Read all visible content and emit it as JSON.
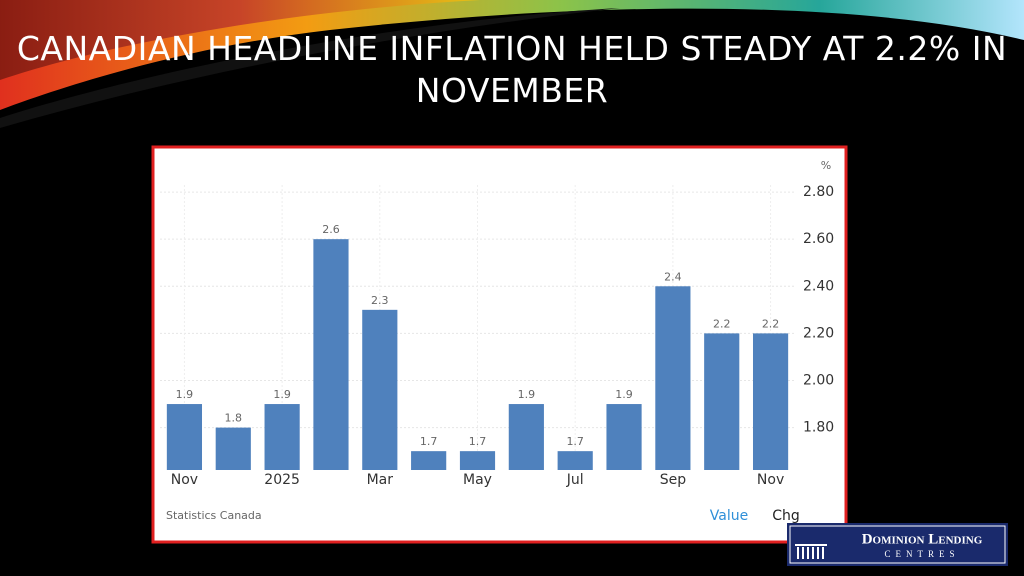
{
  "slide_title": "CANADIAN HEADLINE INFLATION HELD STEADY AT 2.2% IN NOVEMBER",
  "chart_data": {
    "type": "bar",
    "unit": "%",
    "categories": [
      "Nov",
      null,
      "2025",
      null,
      "Mar",
      null,
      "May",
      null,
      "Jul",
      null,
      "Sep",
      null,
      "Nov"
    ],
    "values": [
      1.9,
      1.8,
      1.9,
      2.6,
      2.3,
      1.7,
      1.7,
      1.9,
      1.7,
      1.9,
      2.4,
      2.2,
      2.2
    ],
    "color": "#4f81bd",
    "ylim": [
      1.62,
      2.83
    ],
    "yticks": [
      {
        "value": 1.8,
        "label": "1.80"
      },
      {
        "value": 2.0,
        "label": "2.00"
      },
      {
        "value": 2.2,
        "label": "2.20"
      },
      {
        "value": 2.4,
        "label": "2.40"
      },
      {
        "value": 2.6,
        "label": "2.60"
      },
      {
        "value": 2.8,
        "label": "2.80"
      }
    ],
    "grid": true,
    "source": "Statistics Canada",
    "tabs": [
      "Value",
      "Chg"
    ]
  },
  "logo": {
    "name": "Dominion Lending",
    "sub": "CENTRES"
  }
}
